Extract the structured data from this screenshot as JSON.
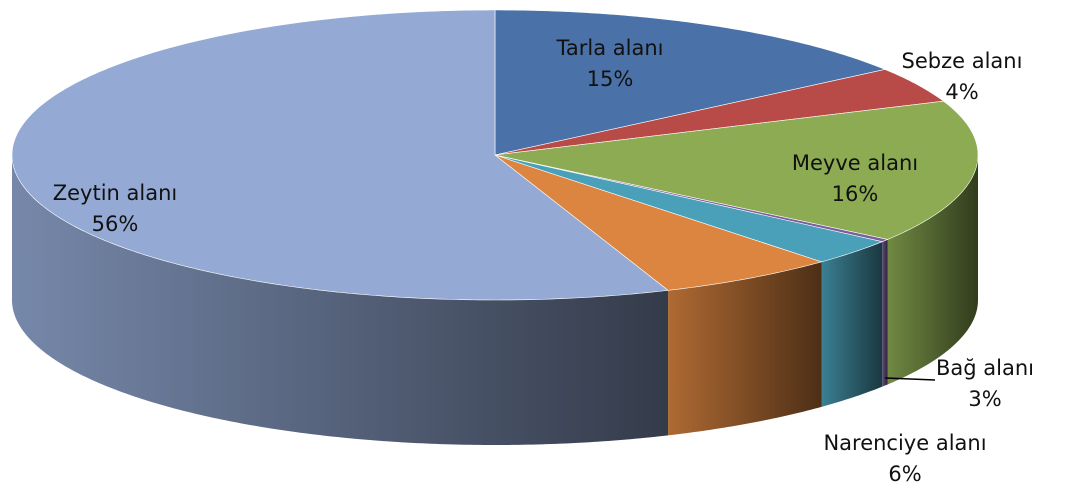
{
  "chart_data": {
    "type": "pie3d",
    "categories": [
      "Tarla alanı",
      "Sebze alanı",
      "Meyve alanı",
      null,
      "Bağ alanı",
      "Narenciye alanı",
      "Zeytin alanı"
    ],
    "values": [
      15,
      4,
      16,
      0.3,
      3,
      6,
      56
    ],
    "value_labels": [
      "15%",
      "4%",
      "16%",
      null,
      "3%",
      "6%",
      "56%"
    ],
    "colors": [
      "#4a72a8",
      "#b84a47",
      "#8cab52",
      "#7b5e9e",
      "#4aa0b8",
      "#db8540",
      "#94aad4"
    ]
  }
}
